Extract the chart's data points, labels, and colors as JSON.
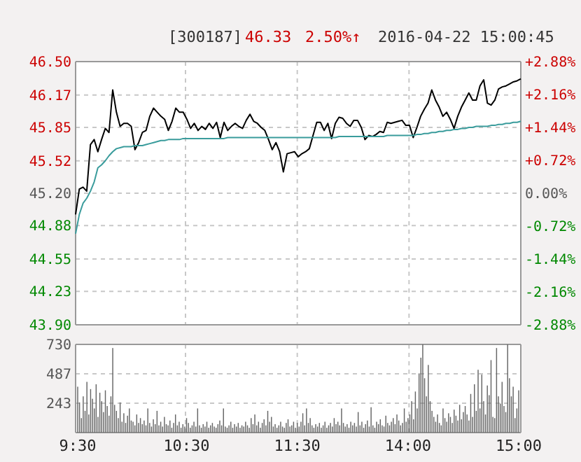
{
  "chart_data": [
    {
      "type": "line",
      "annotations": [
        "[300187]",
        "46.33",
        "2.50%↑",
        "2016-04-22 15:00:45"
      ],
      "categories": [
        null,
        null,
        null,
        null,
        null,
        null,
        null,
        null,
        null,
        null,
        null,
        null,
        null,
        null,
        null,
        null,
        null,
        null,
        null,
        null,
        null,
        null,
        null,
        null,
        null,
        null,
        null,
        null,
        null,
        null,
        null,
        null,
        null,
        null,
        null,
        null,
        null,
        null,
        null,
        null,
        null,
        null,
        null,
        null,
        null,
        null,
        null,
        null,
        null,
        null,
        null,
        null,
        null,
        null,
        null,
        null,
        null,
        null,
        null,
        null,
        null,
        null,
        null,
        null,
        null,
        null,
        null,
        null,
        null,
        null,
        null,
        null,
        null,
        null,
        null,
        null,
        null,
        null,
        null,
        null,
        null,
        null,
        null,
        null,
        null,
        null,
        null,
        null,
        null,
        null,
        null,
        null,
        null,
        null,
        null,
        null,
        null,
        null,
        null,
        null,
        null,
        null,
        null,
        null,
        null,
        null,
        null,
        null,
        null,
        null,
        null,
        null,
        null,
        null,
        null,
        null,
        null,
        null,
        null,
        null,
        null
      ],
      "ylim": [
        43.9,
        46.5
      ],
      "yticks": [
        {
          "value": 43.9,
          "label": "43.90"
        },
        44.23,
        44.55,
        44.88,
        {
          "value": 45.2,
          "label": "45.20"
        },
        45.52,
        45.85,
        46.17,
        {
          "value": 46.5,
          "label": "46.50"
        }
      ],
      "y2lim": [
        -2.88,
        2.88
      ],
      "y2ticks": [
        {
          "value": -2.88,
          "label": "-2.88%"
        },
        {
          "value": -2.16,
          "label": "-2.16%"
        },
        {
          "value": -1.44,
          "label": "-1.44%"
        },
        {
          "value": -0.72,
          "label": "-0.72%"
        },
        {
          "value": 0,
          "label": "0.00%"
        },
        {
          "value": 0.72,
          "label": "+0.72%"
        },
        {
          "value": 1.44,
          "label": "+1.44%"
        },
        {
          "value": 2.16,
          "label": "+2.16%"
        },
        {
          "value": 2.88,
          "label": "+2.88%"
        }
      ],
      "tick_labels": "y",
      "grid": true,
      "series": [
        {
          "color": "#000000",
          "values": [
            44.99,
            45.24,
            45.26,
            45.22,
            45.68,
            45.73,
            45.61,
            45.73,
            45.84,
            45.8,
            46.22,
            46.0,
            45.86,
            45.89,
            45.89,
            45.86,
            45.63,
            45.7,
            45.8,
            45.82,
            45.96,
            46.04,
            46.0,
            45.96,
            45.93,
            45.82,
            45.91,
            46.04,
            46.0,
            46.0,
            45.93,
            45.84,
            45.89,
            45.82,
            45.86,
            45.83,
            45.89,
            45.84,
            45.9,
            45.75,
            45.9,
            45.82,
            45.86,
            45.89,
            45.86,
            45.84,
            45.92,
            45.98,
            45.91,
            45.89,
            45.85,
            45.82,
            45.73,
            45.63,
            45.7,
            45.61,
            45.41,
            45.59,
            45.6,
            45.61,
            45.56,
            45.59,
            45.61,
            45.64,
            45.77,
            45.9,
            45.9,
            45.82,
            45.89,
            45.74,
            45.89,
            45.95,
            45.94,
            45.89,
            45.86,
            45.92,
            45.92,
            45.85,
            45.73,
            45.77,
            45.76,
            45.78,
            45.81,
            45.8,
            45.9,
            45.89,
            45.9,
            45.91,
            45.92,
            45.87,
            45.87,
            45.75,
            45.85,
            45.96,
            46.03,
            46.09,
            46.22,
            46.12,
            46.05,
            45.96,
            46.0,
            45.93,
            45.84,
            45.96,
            46.05,
            46.12,
            46.19,
            46.12,
            46.12,
            46.26,
            46.32,
            46.09,
            46.07,
            46.12,
            46.23,
            46.25,
            46.26,
            46.28,
            46.3,
            46.31,
            46.33
          ]
        },
        {
          "color": "#3a9c9c",
          "values": [
            44.8,
            44.99,
            45.1,
            45.15,
            45.22,
            45.31,
            45.45,
            45.48,
            45.52,
            45.57,
            45.61,
            45.64,
            45.65,
            45.66,
            45.66,
            45.66,
            45.67,
            45.67,
            45.67,
            45.68,
            45.69,
            45.7,
            45.71,
            45.72,
            45.72,
            45.73,
            45.73,
            45.73,
            45.73,
            45.74,
            45.74,
            45.74,
            45.74,
            45.74,
            45.74,
            45.74,
            45.74,
            45.74,
            45.74,
            45.74,
            45.74,
            45.75,
            45.75,
            45.75,
            45.75,
            45.75,
            45.75,
            45.75,
            45.75,
            45.75,
            45.75,
            45.75,
            45.75,
            45.75,
            45.75,
            45.75,
            45.75,
            45.75,
            45.75,
            45.75,
            45.75,
            45.75,
            45.75,
            45.75,
            45.75,
            45.75,
            45.75,
            45.75,
            45.75,
            45.75,
            45.75,
            45.76,
            45.76,
            45.76,
            45.76,
            45.76,
            45.76,
            45.76,
            45.76,
            45.76,
            45.76,
            45.76,
            45.76,
            45.76,
            45.77,
            45.77,
            45.77,
            45.77,
            45.77,
            45.77,
            45.77,
            45.77,
            45.78,
            45.78,
            45.79,
            45.79,
            45.8,
            45.8,
            45.81,
            45.81,
            45.82,
            45.82,
            45.83,
            45.83,
            45.84,
            45.84,
            45.85,
            45.85,
            45.86,
            45.86,
            45.86,
            45.86,
            45.87,
            45.87,
            45.88,
            45.88,
            45.89,
            45.89,
            45.9,
            45.9,
            45.91
          ]
        }
      ]
    },
    {
      "type": "bar",
      "color": "#666666",
      "categories": [
        "9:30",
        null,
        null,
        null,
        null,
        null,
        null,
        null,
        null,
        null,
        null,
        null,
        null,
        null,
        null,
        null,
        null,
        null,
        null,
        null,
        null,
        null,
        null,
        null,
        null,
        null,
        null,
        null,
        null,
        null,
        null,
        null,
        null,
        null,
        null,
        null,
        null,
        null,
        null,
        null,
        null,
        null,
        null,
        null,
        null,
        null,
        null,
        null,
        null,
        null,
        null,
        null,
        null,
        null,
        null,
        null,
        null,
        null,
        null,
        "10:30",
        null,
        null,
        null,
        null,
        null,
        null,
        null,
        null,
        null,
        null,
        null,
        null,
        null,
        null,
        null,
        null,
        null,
        null,
        null,
        null,
        null,
        null,
        null,
        null,
        null,
        null,
        null,
        null,
        null,
        null,
        null,
        null,
        null,
        null,
        null,
        null,
        null,
        null,
        null,
        null,
        null,
        null,
        null,
        null,
        null,
        null,
        null,
        null,
        null,
        null,
        null,
        null,
        null,
        null,
        null,
        null,
        null,
        null,
        null,
        "11:30",
        null,
        null,
        null,
        null,
        null,
        null,
        null,
        null,
        null,
        null,
        null,
        null,
        null,
        null,
        null,
        null,
        null,
        null,
        null,
        null,
        null,
        null,
        null,
        null,
        null,
        null,
        null,
        null,
        null,
        null,
        null,
        null,
        null,
        null,
        null,
        null,
        null,
        null,
        null,
        null,
        null,
        null,
        null,
        null,
        null,
        null,
        null,
        null,
        null,
        null,
        null,
        null,
        null,
        null,
        null,
        null,
        null,
        null,
        null,
        "14:00",
        null,
        null,
        null,
        null,
        null,
        null,
        null,
        null,
        null,
        null,
        null,
        null,
        null,
        null,
        null,
        null,
        null,
        null,
        null,
        null,
        null,
        null,
        null,
        null,
        null,
        null,
        null,
        null,
        null,
        null,
        null,
        null,
        null,
        null,
        null,
        null,
        null,
        null,
        null,
        null,
        null,
        null,
        null,
        null,
        null,
        null,
        null,
        null,
        null,
        null,
        null,
        null,
        null,
        null,
        null,
        null,
        null,
        null,
        null,
        "15:00"
      ],
      "ylim": [
        0,
        730
      ],
      "yticks": [
        243,
        487,
        730
      ],
      "grid": true,
      "values": [
        380,
        250,
        120,
        300,
        180,
        420,
        150,
        360,
        280,
        200,
        400,
        130,
        330,
        260,
        170,
        350,
        220,
        140,
        300,
        700,
        230,
        180,
        120,
        250,
        90,
        160,
        80,
        140,
        200,
        100,
        90,
        60,
        150,
        80,
        120,
        70,
        100,
        60,
        200,
        80,
        50,
        110,
        70,
        180,
        60,
        90,
        50,
        130,
        70,
        60,
        100,
        40,
        80,
        150,
        60,
        90,
        40,
        70,
        50,
        120,
        80,
        40,
        60,
        90,
        50,
        200,
        60,
        40,
        70,
        50,
        90,
        40,
        60,
        80,
        50,
        40,
        70,
        100,
        60,
        200,
        50,
        40,
        60,
        90,
        40,
        70,
        50,
        80,
        40,
        60,
        50,
        90,
        60,
        40,
        120,
        70,
        150,
        60,
        90,
        40,
        80,
        110,
        60,
        180,
        90,
        130,
        50,
        70,
        40,
        60,
        90,
        50,
        40,
        80,
        110,
        50,
        60,
        90,
        40,
        80,
        50,
        90,
        160,
        60,
        200,
        80,
        120,
        60,
        40,
        70,
        50,
        80,
        40,
        60,
        90,
        40,
        60,
        80,
        50,
        120,
        70,
        90,
        60,
        200,
        80,
        50,
        70,
        40,
        90,
        60,
        80,
        50,
        170,
        60,
        90,
        40,
        70,
        100,
        50,
        210,
        60,
        40,
        90,
        70,
        110,
        60,
        50,
        140,
        80,
        60,
        90,
        120,
        70,
        150,
        100,
        60,
        80,
        200,
        90,
        120,
        150,
        260,
        110,
        340,
        200,
        490,
        620,
        730,
        450,
        300,
        560,
        260,
        180,
        130,
        90,
        150,
        80,
        60,
        200,
        120,
        90,
        160,
        130,
        80,
        190,
        140,
        100,
        230,
        110,
        170,
        220,
        150,
        100,
        320,
        130,
        400,
        180,
        520,
        200,
        480,
        260,
        150,
        390,
        310,
        600,
        130,
        120,
        700,
        300,
        240,
        420,
        220,
        170,
        730,
        450,
        300,
        380,
        120,
        200,
        350
      ]
    }
  ]
}
